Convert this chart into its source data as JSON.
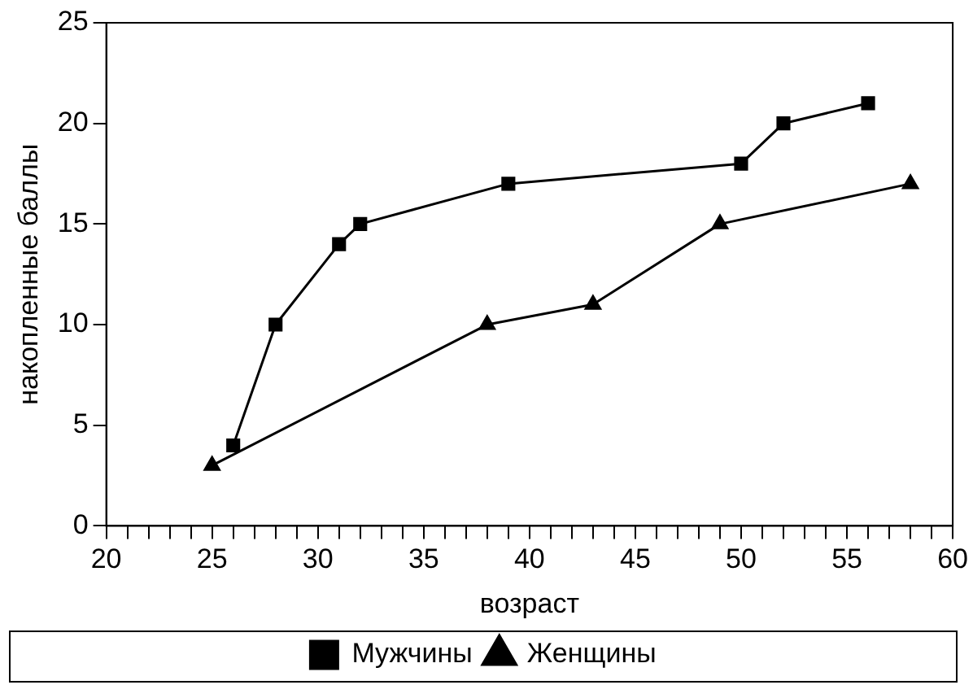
{
  "chart_data": {
    "type": "line",
    "xlabel": "возраст",
    "ylabel": "накопленные баллы",
    "xlim": [
      20,
      60
    ],
    "ylim": [
      0,
      25
    ],
    "xticks": [
      20,
      {
        "value": 21,
        "label": null
      },
      {
        "value": 22,
        "label": null
      },
      {
        "value": 23,
        "label": null
      },
      {
        "value": 24,
        "label": null
      },
      25,
      {
        "value": 26,
        "label": null
      },
      {
        "value": 27,
        "label": null
      },
      {
        "value": 28,
        "label": null
      },
      {
        "value": 29,
        "label": null
      },
      30,
      {
        "value": 31,
        "label": null
      },
      {
        "value": 32,
        "label": null
      },
      {
        "value": 33,
        "label": null
      },
      {
        "value": 34,
        "label": null
      },
      35,
      {
        "value": 36,
        "label": null
      },
      {
        "value": 37,
        "label": null
      },
      {
        "value": 38,
        "label": null
      },
      {
        "value": 39,
        "label": null
      },
      40,
      {
        "value": 41,
        "label": null
      },
      {
        "value": 42,
        "label": null
      },
      {
        "value": 43,
        "label": null
      },
      {
        "value": 44,
        "label": null
      },
      45,
      {
        "value": 46,
        "label": null
      },
      {
        "value": 47,
        "label": null
      },
      {
        "value": 48,
        "label": null
      },
      {
        "value": 49,
        "label": null
      },
      50,
      {
        "value": 51,
        "label": null
      },
      {
        "value": 52,
        "label": null
      },
      {
        "value": 53,
        "label": null
      },
      {
        "value": 54,
        "label": null
      },
      55,
      {
        "value": 56,
        "label": null
      },
      {
        "value": 57,
        "label": null
      },
      {
        "value": 58,
        "label": null
      },
      {
        "value": 59,
        "label": null
      },
      60
    ],
    "yticks": [
      0,
      5,
      10,
      15,
      20,
      25
    ],
    "grid": false,
    "legend": "bottom",
    "line_style": "solid",
    "series": [
      {
        "name": "Мужчины",
        "color": "#000000",
        "marker": "square",
        "x": [
          26,
          28,
          31,
          32,
          39,
          50,
          52,
          56
        ],
        "values": [
          4,
          10,
          14,
          15,
          17,
          18,
          20,
          21
        ]
      },
      {
        "name": "Женщины",
        "color": "#000000",
        "marker": "triangle",
        "x": [
          25,
          38,
          43,
          49,
          58
        ],
        "values": [
          3,
          10,
          11,
          15,
          17
        ]
      }
    ]
  }
}
